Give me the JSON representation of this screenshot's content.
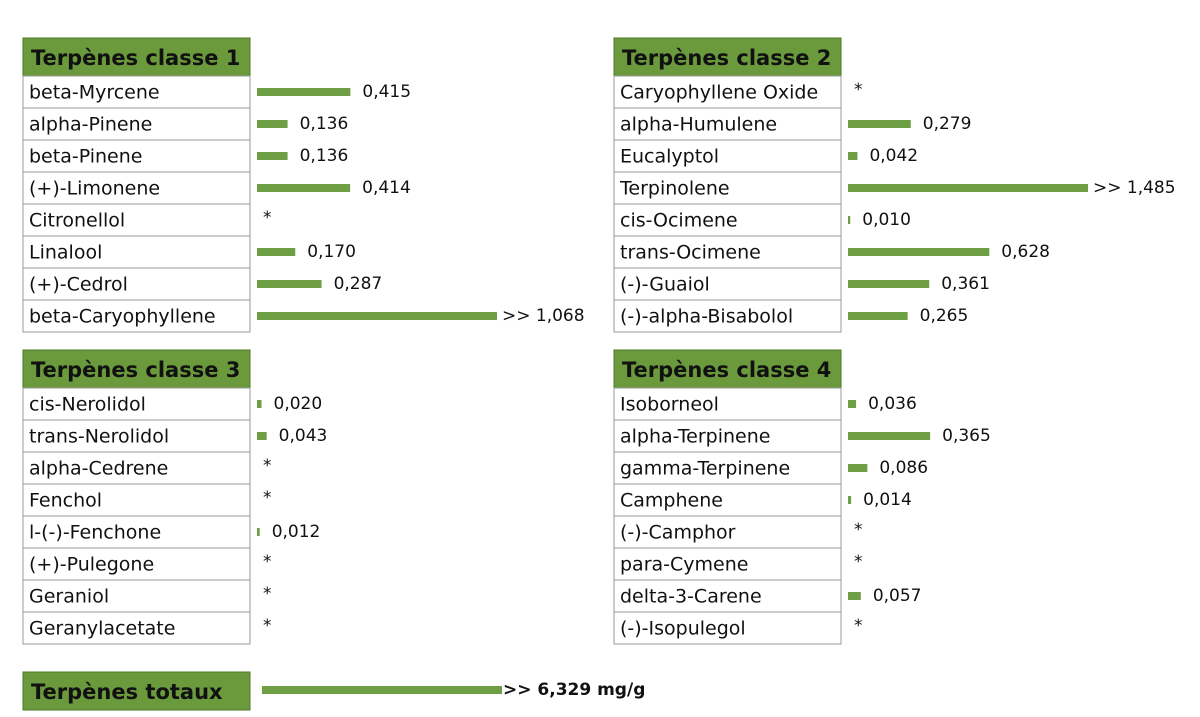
{
  "groups": [
    {
      "title": "Terpènes classe 1",
      "rows": [
        {
          "name": "beta-Myrcene",
          "value": 0.415,
          "label": "0,415"
        },
        {
          "name": "alpha-Pinene",
          "value": 0.136,
          "label": "0,136"
        },
        {
          "name": "beta-Pinene",
          "value": 0.136,
          "label": "0,136"
        },
        {
          "name": "(+)-Limonene",
          "value": 0.414,
          "label": "0,414"
        },
        {
          "name": "Citronellol",
          "value": null,
          "label": "*"
        },
        {
          "name": "Linalool",
          "value": 0.17,
          "label": "0,170"
        },
        {
          "name": "(+)-Cedrol",
          "value": 0.287,
          "label": "0,287"
        },
        {
          "name": "beta-Caryophyllene",
          "value": 1.068,
          "label": ">> 1,068"
        }
      ]
    },
    {
      "title": "Terpènes classe 2",
      "rows": [
        {
          "name": "Caryophyllene Oxide",
          "value": null,
          "label": "*"
        },
        {
          "name": "alpha-Humulene",
          "value": 0.279,
          "label": "0,279"
        },
        {
          "name": "Eucalyptol",
          "value": 0.042,
          "label": "0,042"
        },
        {
          "name": "Terpinolene",
          "value": 1.485,
          "label": ">> 1,485"
        },
        {
          "name": "cis-Ocimene",
          "value": 0.01,
          "label": "0,010"
        },
        {
          "name": "trans-Ocimene",
          "value": 0.628,
          "label": "0,628"
        },
        {
          "name": "(-)-Guaiol",
          "value": 0.361,
          "label": "0,361"
        },
        {
          "name": "(-)-alpha-Bisabolol",
          "value": 0.265,
          "label": "0,265"
        }
      ]
    },
    {
      "title": "Terpènes classe 3",
      "rows": [
        {
          "name": "cis-Nerolidol",
          "value": 0.02,
          "label": "0,020"
        },
        {
          "name": "trans-Nerolidol",
          "value": 0.043,
          "label": "0,043"
        },
        {
          "name": "alpha-Cedrene",
          "value": null,
          "label": "*"
        },
        {
          "name": "Fenchol",
          "value": null,
          "label": "*"
        },
        {
          "name": "l-(-)-Fenchone",
          "value": 0.012,
          "label": "0,012"
        },
        {
          "name": "(+)-Pulegone",
          "value": null,
          "label": "*"
        },
        {
          "name": "Geraniol",
          "value": null,
          "label": "*"
        },
        {
          "name": "Geranylacetate",
          "value": null,
          "label": "*"
        }
      ]
    },
    {
      "title": "Terpènes classe 4",
      "rows": [
        {
          "name": "Isoborneol",
          "value": 0.036,
          "label": "0,036"
        },
        {
          "name": "alpha-Terpinene",
          "value": 0.365,
          "label": "0,365"
        },
        {
          "name": "gamma-Terpinene",
          "value": 0.086,
          "label": "0,086"
        },
        {
          "name": "Camphene",
          "value": 0.014,
          "label": "0,014"
        },
        {
          "name": "(-)-Camphor",
          "value": null,
          "label": "*"
        },
        {
          "name": "para-Cymene",
          "value": null,
          "label": "*"
        },
        {
          "name": "delta-3-Carene",
          "value": 0.057,
          "label": "0,057"
        },
        {
          "name": "(-)-Isopulegol",
          "value": null,
          "label": "*"
        }
      ]
    }
  ],
  "total": {
    "title": "Terpènes totaux",
    "value": 6.329,
    "label": ">> 6,329 mg/g"
  }
}
